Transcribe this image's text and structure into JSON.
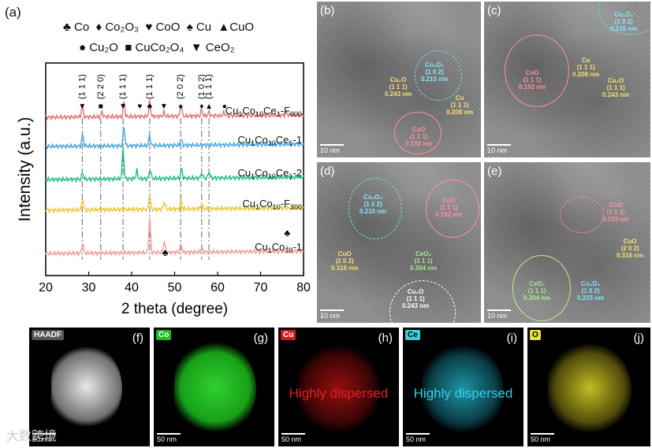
{
  "panel_a": {
    "label": "(a)",
    "legend_row1": [
      "♣ Co",
      "♦ Co₂O₃",
      "♥ CoO",
      "♠ Cu",
      "▲CuO"
    ],
    "legend_row2": [
      "● Cu₂O",
      "■ CuCo₂O₄",
      "▼ CeO₂"
    ]
  },
  "chart_data": {
    "type": "line",
    "xlabel": "2 theta (degree)",
    "ylabel": "Intensity (a.u.)",
    "xlim": [
      20,
      80
    ],
    "x_ticks": [
      20,
      30,
      40,
      50,
      60,
      70,
      80
    ],
    "series": [
      {
        "name": "Cu1Co10Ce1-F600",
        "display": [
          "Cu",
          "1",
          "Co",
          "10",
          "Ce",
          "1",
          "-F",
          "600"
        ],
        "color": "#e57373",
        "offset": 4,
        "peaks": [
          [
            28.5,
            0.35
          ],
          [
            33.1,
            0.15
          ],
          [
            38.2,
            0.45
          ],
          [
            44.2,
            0.45
          ],
          [
            47.5,
            0.12
          ],
          [
            51.5,
            0.35
          ],
          [
            56.3,
            0.2
          ],
          [
            58.0,
            0.12
          ],
          [
            61.5,
            0.1
          ],
          [
            76.0,
            0.1
          ]
        ]
      },
      {
        "name": "Cu1Co10Ce1-1",
        "display": [
          "Cu",
          "1",
          "Co",
          "10",
          "Ce",
          "1",
          "-1"
        ],
        "color": "#4aa6e0",
        "offset": 3,
        "peaks": [
          [
            28.6,
            0.35
          ],
          [
            38.2,
            0.6
          ],
          [
            44.2,
            0.3
          ],
          [
            51.5,
            0.2
          ]
        ]
      },
      {
        "name": "Cu1Co10Ce1-2",
        "display": [
          "Cu",
          "1",
          "Co",
          "10",
          "Ce",
          "1",
          "-2"
        ],
        "color": "#1fbf7f",
        "offset": 2,
        "peaks": [
          [
            28.6,
            0.2
          ],
          [
            38.0,
            0.95
          ],
          [
            41.2,
            0.25
          ],
          [
            44.3,
            0.3
          ],
          [
            51.6,
            0.3
          ],
          [
            56.3,
            0.15
          ],
          [
            58.0,
            0.2
          ]
        ]
      },
      {
        "name": "Cu1Co10-F300",
        "display": [
          "Cu",
          "1",
          "Co",
          "10",
          "-F",
          "300"
        ],
        "color": "#e8c930",
        "offset": 1,
        "peaks": [
          [
            28.6,
            0.35
          ],
          [
            44.2,
            0.45
          ],
          [
            47.6,
            0.25
          ],
          [
            51.5,
            0.25
          ],
          [
            56.3,
            0.15
          ]
        ]
      },
      {
        "name": "Cu1Co10-1",
        "display": [
          "Cu",
          "1",
          "Co",
          "10",
          "-1"
        ],
        "color": "#f29ca0",
        "offset": 0,
        "peaks": [
          [
            28.6,
            0.3
          ],
          [
            44.2,
            1.1
          ],
          [
            47.6,
            0.35
          ],
          [
            51.5,
            0.25
          ],
          [
            56.3,
            0.12
          ],
          [
            76.2,
            0.12
          ]
        ]
      }
    ],
    "peak_marks": [
      {
        "x": 28.5,
        "sym": "▼",
        "hkl": "(1 1 1)"
      },
      {
        "x": 32.8,
        "sym": "■",
        "hkl": "(2 2 0)"
      },
      {
        "x": 38.0,
        "sym": "▼",
        "hkl": "(1 1 1)"
      },
      {
        "x": 41.9,
        "sym": "♥",
        "hkl": ""
      },
      {
        "x": 44.2,
        "sym": "♣",
        "hkl": "(1 1 1)"
      },
      {
        "x": 47.5,
        "sym": "▼",
        "hkl": ""
      },
      {
        "x": 51.4,
        "sym": "♠",
        "hkl": "(2 0 2)"
      },
      {
        "x": 56.3,
        "sym": "♦",
        "hkl": "(1 0 2)"
      },
      {
        "x": 58.0,
        "sym": "▲",
        "hkl": "(1 1 1)"
      },
      {
        "x": 61.6,
        "sym": "●",
        "hkl": ""
      }
    ],
    "extra_marks": [
      {
        "x": 47.8,
        "sym": "♣",
        "pos": "bottom"
      },
      {
        "x": 76.2,
        "sym": "♣",
        "pos": "bottom"
      }
    ],
    "guide_lines": [
      28.5,
      32.8,
      38.0,
      44.2,
      51.4,
      56.3,
      58.0
    ]
  },
  "panels": {
    "b": {
      "label": "(b)",
      "scale": "10 nm",
      "a1": [
        "Cu₂O",
        "(1 1 1)",
        "0.243 nm"
      ],
      "a2": [
        "Co₂O₃",
        "(1 0 2)",
        "0.215 nm"
      ],
      "a3": [
        "Cu",
        "(1 1 1)",
        "0.208 nm"
      ],
      "a4": [
        "CoO",
        "(1 1 1)",
        "0.192 nm"
      ]
    },
    "c": {
      "label": "(c)",
      "scale": "10 nm",
      "a1": [
        "Co₂O₃",
        "(1 0 2)",
        "0.215 nm"
      ],
      "a2": [
        "CoO",
        "(1 1 1)",
        "0.192 nm"
      ],
      "a3": [
        "Cu",
        "(1 1 1)",
        "0.208 nm"
      ],
      "a4": [
        "Cu₂O",
        "(1 1 1)",
        "0.243 nm"
      ]
    },
    "d": {
      "label": "(d)",
      "scale": "10 nm",
      "a1": [
        "Co₂O₃",
        "(1 0 2)",
        "0.215 nm"
      ],
      "a2": [
        "CoO",
        "(1 1 1)",
        "0.192 nm"
      ],
      "a3": [
        "CuO",
        "(2 0 2)",
        "0.316 nm"
      ],
      "a4": [
        "CeO₂",
        "(1 1 1)",
        "0.304 nm"
      ],
      "a5": [
        "Cu₂O",
        "(1 1 1)",
        "0.243 nm"
      ]
    },
    "e": {
      "label": "(e)",
      "scale": "10 nm",
      "a1": [
        "CoO",
        "(1 1 1)",
        "0.192 nm"
      ],
      "a2": [
        "CuO",
        "(2 0 2)",
        "0.316 nm"
      ],
      "a3": [
        "Co₂O₃",
        "(1 0 2)",
        "0.215 nm"
      ],
      "a4": [
        "CeO₂",
        "(1 1 1)",
        "0.304 nm"
      ]
    }
  },
  "eds": [
    {
      "tag": "HAADF",
      "label": "(f)",
      "scale": "50 nm",
      "tag_color": "#ffffff",
      "tag_bg": "#555555"
    },
    {
      "tag": "Co",
      "label": "(g)",
      "scale": "50 nm",
      "tag_color": "#ffffff",
      "tag_bg": "#1fbf1f"
    },
    {
      "tag": "Cu",
      "label": "(h)",
      "scale": "50 nm",
      "tag_color": "#ffffff",
      "tag_bg": "#d11c1c",
      "note": "Highly dispersed",
      "note_color": "#e02020"
    },
    {
      "tag": "Ce",
      "label": "(i)",
      "scale": "50 nm",
      "tag_color": "#000000",
      "tag_bg": "#36d0e0",
      "note": "Highly dispersed",
      "note_color": "#30d0e8"
    },
    {
      "tag": "O",
      "label": "(j)",
      "scale": "50 nm",
      "tag_color": "#000000",
      "tag_bg": "#e8e030"
    }
  ],
  "watermark": "大数跨境"
}
